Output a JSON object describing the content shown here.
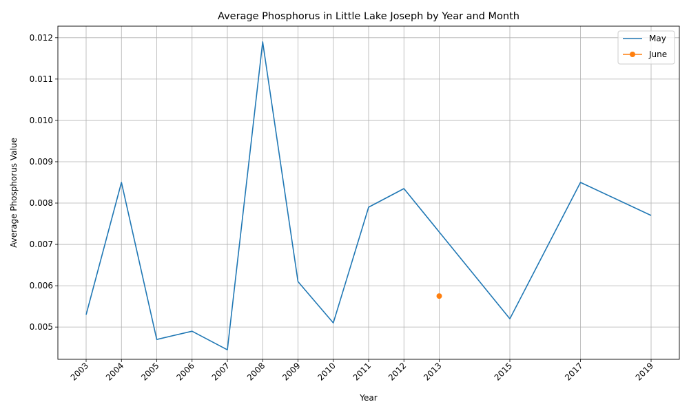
{
  "chart_data": {
    "type": "line",
    "title": "Average Phosphorus in Little Lake Joseph by Year and Month",
    "xlabel": "Year",
    "ylabel": "Average Phosphorus Value",
    "x_ticks": [
      2003,
      2004,
      2005,
      2006,
      2007,
      2008,
      2009,
      2010,
      2011,
      2012,
      2013,
      2015,
      2017,
      2019
    ],
    "y_ticks": [
      "0.005",
      "0.006",
      "0.007",
      "0.008",
      "0.009",
      "0.010",
      "0.011",
      "0.012"
    ],
    "xlim": [
      2002.2,
      2019.8
    ],
    "ylim": [
      0.00422,
      0.01228
    ],
    "grid": true,
    "legend_position": "top-right",
    "series": [
      {
        "name": "May",
        "color": "#1f77b4",
        "marker": "none",
        "x": [
          2003,
          2004,
          2005,
          2006,
          2007,
          2008,
          2009,
          2010,
          2011,
          2012,
          2015,
          2017,
          2019
        ],
        "y": [
          0.0053,
          0.0085,
          0.0047,
          0.0049,
          0.00445,
          0.0119,
          0.0061,
          0.0051,
          0.0079,
          0.00835,
          0.0052,
          0.0085,
          0.0077
        ]
      },
      {
        "name": "June",
        "color": "#ff7f0e",
        "marker": "circle",
        "x": [
          2013
        ],
        "y": [
          0.00575
        ]
      }
    ]
  }
}
